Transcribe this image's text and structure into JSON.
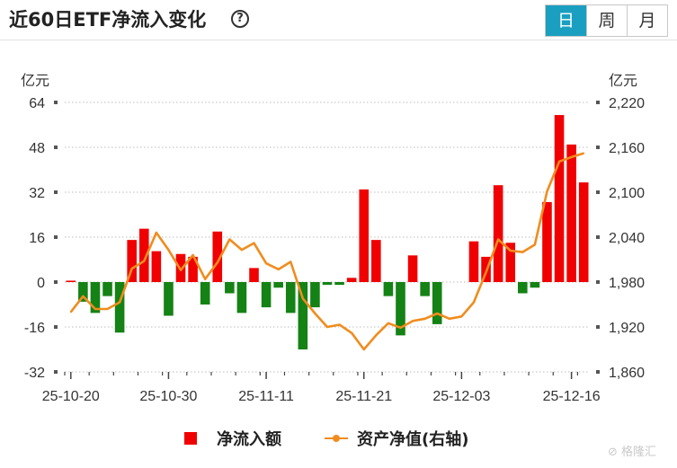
{
  "header": {
    "title": "近60日ETF净流入变化",
    "help_icon": "question-circle-icon",
    "tabs": [
      {
        "label": "日",
        "active": true
      },
      {
        "label": "周",
        "active": false
      },
      {
        "label": "月",
        "active": false
      }
    ]
  },
  "chart_data": {
    "type": "bar",
    "left_unit": "亿元",
    "right_unit": "亿元",
    "left_ticks": [
      "64",
      "48",
      "32",
      "16",
      "0",
      "-16",
      "-32"
    ],
    "right_ticks": [
      "2,220",
      "2,160",
      "2,100",
      "2,040",
      "1,980",
      "1,920",
      "1,860"
    ],
    "ylim_left": [
      -32,
      64
    ],
    "ylim_right": [
      1860,
      2220
    ],
    "x_tick_labels": [
      "25-10-20",
      "25-10-30",
      "25-11-11",
      "25-11-21",
      "25-12-03",
      "25-12-16"
    ],
    "x_tick_indices": [
      0,
      8,
      16,
      24,
      32,
      41
    ],
    "grid": true,
    "legend_position": "bottom",
    "series": [
      {
        "name": "净流入额",
        "kind": "bar",
        "values": [
          0.5,
          -7,
          -11,
          -5,
          -18,
          15,
          19,
          11,
          -12,
          10,
          9,
          -8,
          18,
          -4,
          -11,
          5,
          -9,
          -2,
          -11,
          -24,
          -9,
          -1,
          -1,
          1.5,
          33,
          15,
          -5,
          -19,
          9.5,
          -5,
          -15,
          0,
          0,
          14.5,
          9,
          34.5,
          14,
          -4,
          -2,
          28.5,
          59.5,
          49,
          35.5
        ],
        "color_positive": "#f00000",
        "color_negative": "#148214"
      },
      {
        "name": "资产净值(右轴)",
        "kind": "line",
        "values": [
          1940,
          1961,
          1944,
          1944,
          1953,
          1998,
          2008,
          2046,
          2023,
          1996,
          2016,
          1984,
          2006,
          2037,
          2023,
          2032,
          2005,
          1997,
          2007,
          1958,
          1938,
          1920,
          1923,
          1912,
          1890,
          1909,
          1925,
          1919,
          1928,
          1931,
          1938,
          1931,
          1934,
          1953,
          1993,
          2037,
          2022,
          2020,
          2030,
          2101,
          2141,
          2147,
          2152
        ],
        "color": "#f08c1e"
      }
    ]
  },
  "legend": {
    "bar_label": "净流入额",
    "line_label": "资产净值(右轴)"
  },
  "watermark": "格隆汇"
}
